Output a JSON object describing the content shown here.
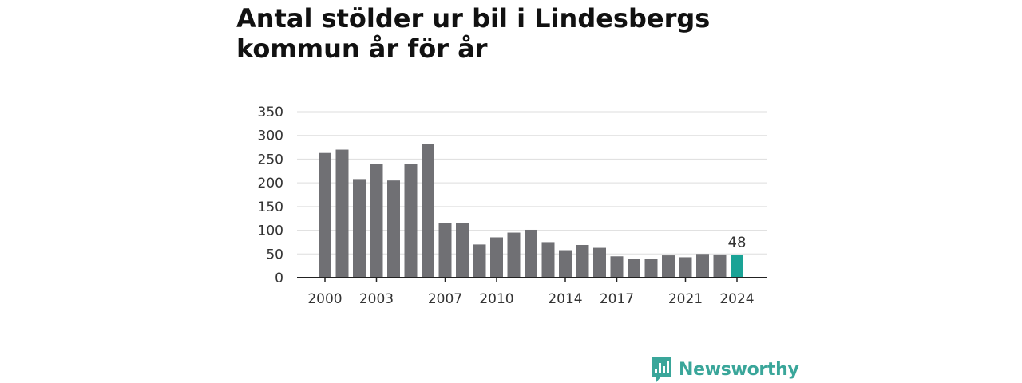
{
  "chart_data": {
    "type": "bar",
    "title": "Antal stölder ur bil i Lindesbergs kommun år för år",
    "xlabel": "",
    "ylabel": "",
    "categories": [
      "2000",
      "2001",
      "2002",
      "2003",
      "2004",
      "2005",
      "2006",
      "2007",
      "2008",
      "2009",
      "2010",
      "2011",
      "2012",
      "2013",
      "2014",
      "2015",
      "2016",
      "2017",
      "2018",
      "2019",
      "2020",
      "2021",
      "2022",
      "2023",
      "2024"
    ],
    "values": [
      263,
      270,
      208,
      240,
      205,
      240,
      281,
      116,
      115,
      70,
      85,
      95,
      101,
      75,
      58,
      69,
      63,
      45,
      40,
      40,
      47,
      43,
      50,
      49,
      48
    ],
    "x_tick_labels": [
      "2000",
      "2003",
      "2007",
      "2010",
      "2014",
      "2017",
      "2021",
      "2024"
    ],
    "y_ticks": [
      0,
      50,
      100,
      150,
      200,
      250,
      300,
      350
    ],
    "ylim": [
      0,
      350
    ],
    "grid": true,
    "highlight": {
      "category": "2024",
      "label": "48"
    },
    "colors": {
      "bar": "#707074",
      "highlight": "#1aa396",
      "grid": "#dddddd",
      "axis": "#222222"
    }
  },
  "branding": {
    "logo_text": "Newsworthy",
    "logo_icon": "bar-chart-speech-bubble-icon",
    "logo_color": "#3aa69a"
  }
}
